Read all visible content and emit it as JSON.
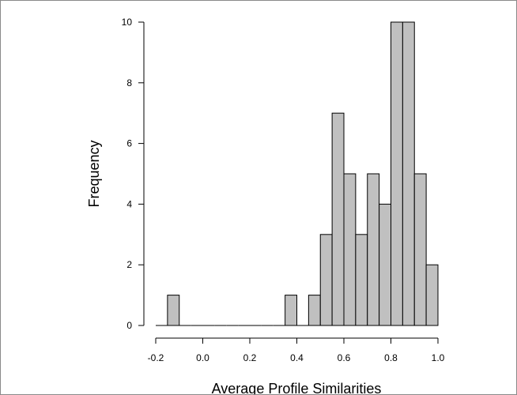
{
  "chart_data": {
    "type": "bar",
    "subtype": "histogram",
    "title": "",
    "xlabel": "Average Profile Similarities",
    "ylabel": "Frequency",
    "bin_edges": [
      -0.2,
      -0.15,
      -0.1,
      -0.05,
      0.0,
      0.05,
      0.1,
      0.15,
      0.2,
      0.25,
      0.3,
      0.35,
      0.4,
      0.45,
      0.5,
      0.55,
      0.6,
      0.65,
      0.7,
      0.75,
      0.8,
      0.85,
      0.9,
      0.95,
      1.0
    ],
    "values": [
      0,
      1,
      0,
      0,
      0,
      0,
      0,
      0,
      0,
      0,
      0,
      1,
      0,
      1,
      3,
      7,
      5,
      3,
      5,
      4,
      10,
      10,
      5,
      2
    ],
    "xlim": [
      -0.2,
      1.0
    ],
    "ylim": [
      0,
      10
    ],
    "x_ticks": [
      -0.2,
      0.0,
      0.2,
      0.4,
      0.6,
      0.8,
      1.0
    ],
    "x_tick_labels": [
      "-0.2",
      "0.0",
      "0.2",
      "0.4",
      "0.6",
      "0.8",
      "1.0"
    ],
    "y_ticks": [
      0,
      2,
      4,
      6,
      8,
      10
    ],
    "y_tick_labels": [
      "0",
      "2",
      "4",
      "6",
      "8",
      "10"
    ],
    "grid": false,
    "colors": {
      "bar_fill": "#c0c0c0",
      "bar_stroke": "#000000",
      "axis": "#000000",
      "frame_border": "#8a8a8a"
    }
  }
}
